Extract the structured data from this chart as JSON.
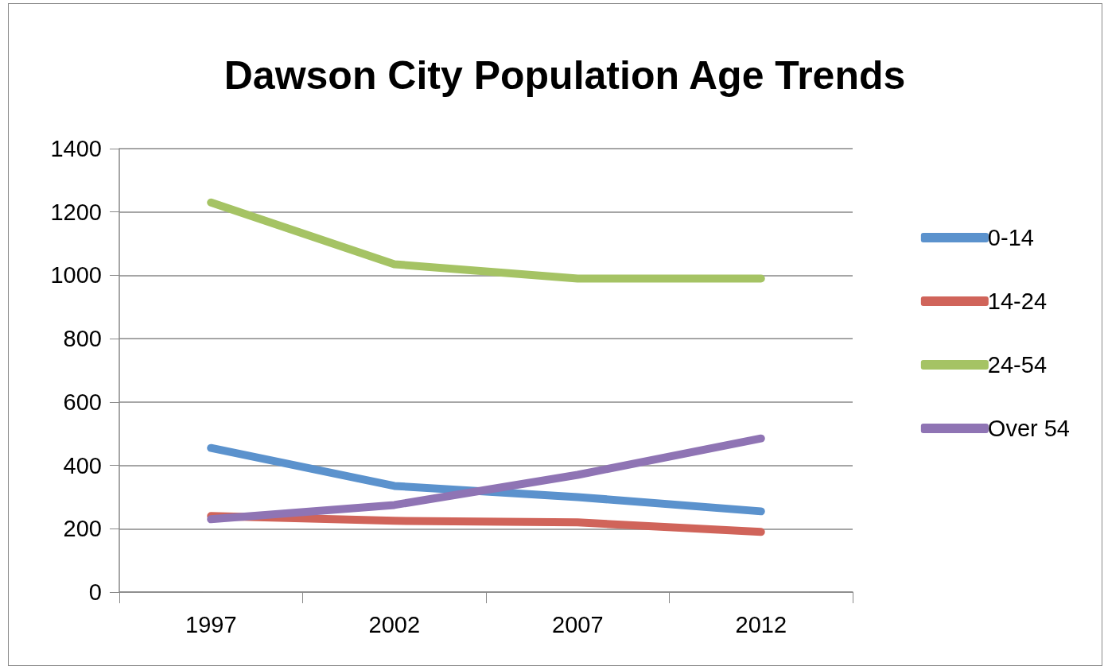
{
  "chart_data": {
    "type": "line",
    "title": "Dawson City Population Age Trends",
    "categories": [
      "1997",
      "2002",
      "2007",
      "2012"
    ],
    "series": [
      {
        "name": "0-14",
        "color": "#5b92cd",
        "values": [
          455,
          335,
          300,
          255
        ]
      },
      {
        "name": "14-24",
        "color": "#d0645a",
        "values": [
          240,
          225,
          220,
          190
        ]
      },
      {
        "name": "24-54",
        "color": "#a5c364",
        "values": [
          1230,
          1035,
          990,
          990
        ]
      },
      {
        "name": "Over 54",
        "color": "#8f74b4",
        "values": [
          230,
          275,
          370,
          485
        ]
      }
    ],
    "ylim": [
      0,
      1400
    ],
    "yticks": [
      0,
      200,
      400,
      600,
      800,
      1000,
      1200,
      1400
    ],
    "grid": "y",
    "legend": "right",
    "marker": "none",
    "line_style": "solid"
  }
}
